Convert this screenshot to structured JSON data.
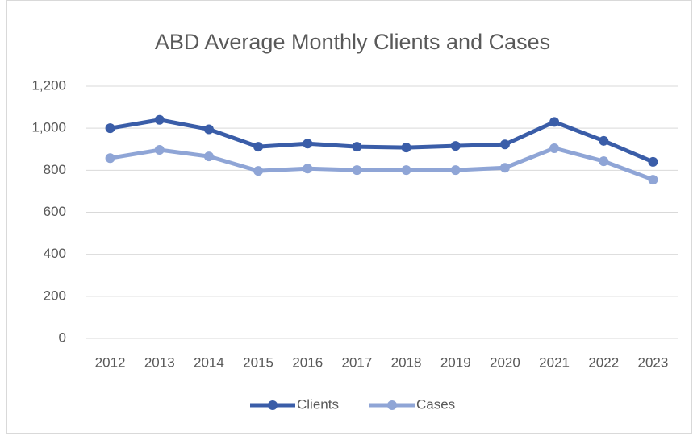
{
  "chart_data": {
    "type": "line",
    "title": "ABD Average Monthly Clients and Cases",
    "categories": [
      "2012",
      "2013",
      "2014",
      "2015",
      "2016",
      "2017",
      "2018",
      "2019",
      "2020",
      "2021",
      "2022",
      "2023"
    ],
    "series": [
      {
        "name": "Clients",
        "color": "#3a5da8",
        "values": [
          1000,
          1040,
          995,
          912,
          927,
          912,
          908,
          916,
          923,
          1030,
          940,
          840
        ]
      },
      {
        "name": "Cases",
        "color": "#8fa5d6",
        "values": [
          858,
          897,
          866,
          797,
          808,
          801,
          801,
          801,
          812,
          905,
          843,
          755
        ]
      }
    ],
    "ylim": [
      0,
      1200
    ],
    "yticks": [
      0,
      200,
      400,
      600,
      800,
      {
        "value": 1000,
        "label": "1,000"
      },
      {
        "value": 1200,
        "label": "1,200"
      }
    ],
    "grid": true,
    "legend": "bottom"
  }
}
